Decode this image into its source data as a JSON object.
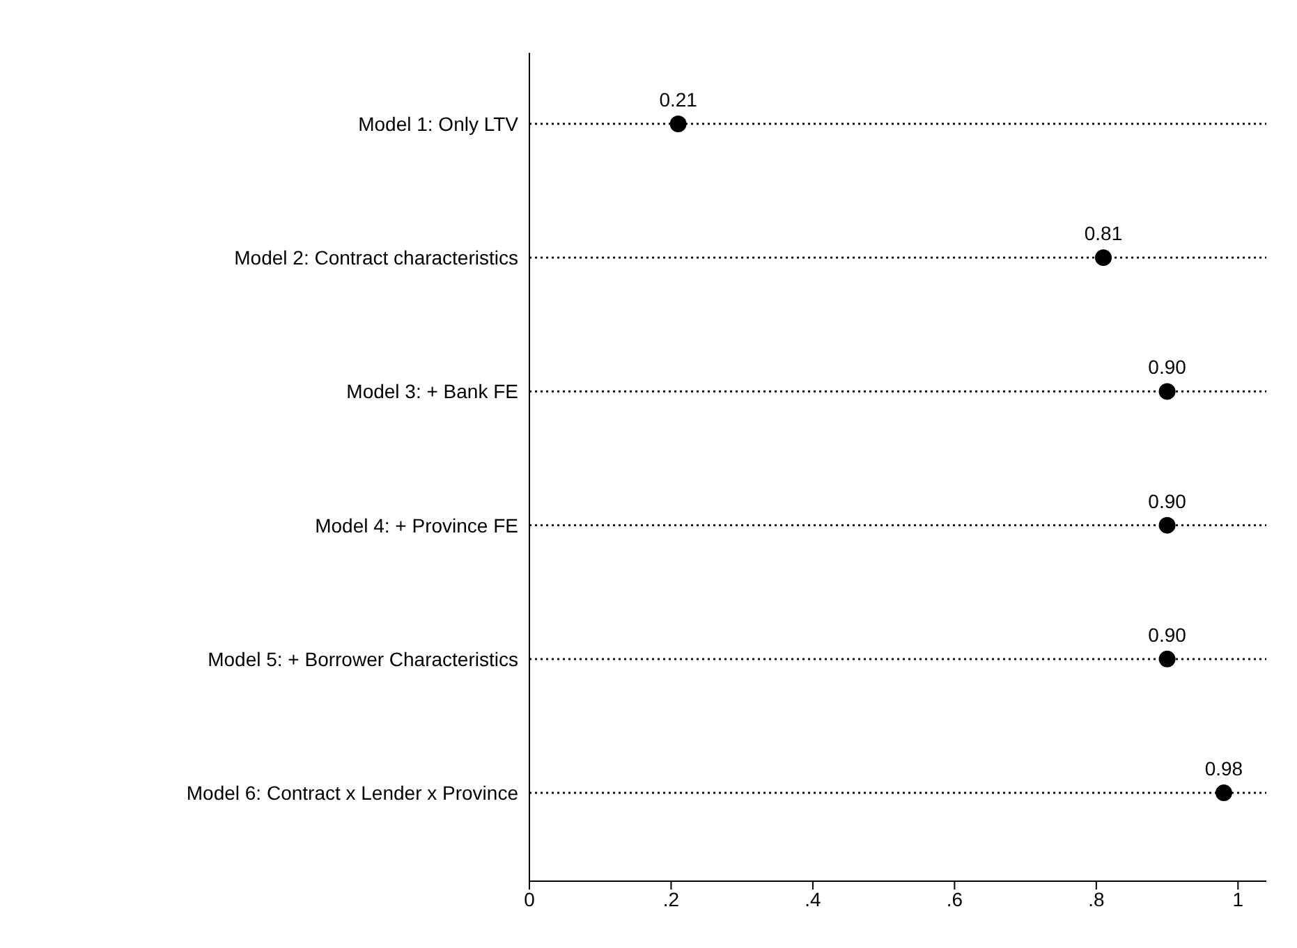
{
  "chart_data": {
    "type": "scatter",
    "orientation": "horizontal",
    "categories": [
      "Model 1: Only LTV",
      "Model 2: Contract characteristics",
      "Model 3: + Bank FE",
      "Model 4: + Province FE",
      "Model 5: + Borrower Characteristics",
      "Model 6: Contract x Lender x Province"
    ],
    "values": [
      0.21,
      0.81,
      0.9,
      0.9,
      0.9,
      0.98
    ],
    "value_labels": [
      "0.21",
      "0.81",
      "0.90",
      "0.90",
      "0.90",
      "0.98"
    ],
    "color": "#000000",
    "marker": "circle",
    "grid": "y",
    "line_style": "dotted",
    "xlim": [
      0,
      1.04
    ],
    "xticks": [
      0,
      {
        "value": 0.2,
        "label": ".2"
      },
      {
        "value": 0.4,
        "label": ".4"
      },
      {
        "value": 0.6,
        "label": ".6"
      },
      {
        "value": 0.8,
        "label": ".8"
      },
      1
    ]
  }
}
